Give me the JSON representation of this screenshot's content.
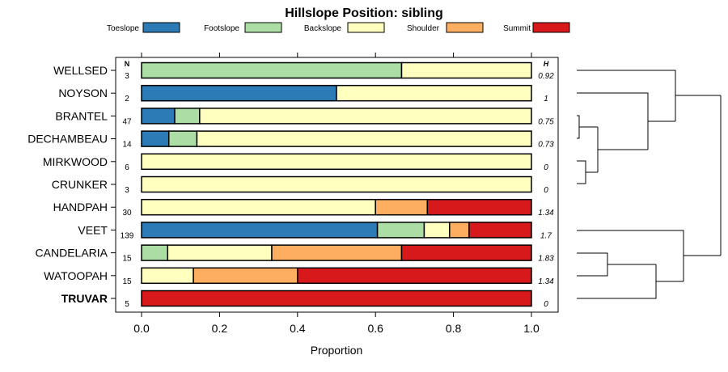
{
  "chart_data": {
    "type": "bar",
    "orientation": "horizontal",
    "stacked": true,
    "title": "Hillslope Position: sibling",
    "xlabel": "Proportion",
    "ylabel": "",
    "xlim": [
      0,
      1
    ],
    "x_ticks": [
      "0.0",
      "0.2",
      "0.4",
      "0.6",
      "0.8",
      "1.0"
    ],
    "n_header": "N",
    "h_header": "H",
    "legend": {
      "placement": "top",
      "entries": [
        {
          "name": "Toeslope",
          "color": "#2c7bb6"
        },
        {
          "name": "Footslope",
          "color": "#abdda4"
        },
        {
          "name": "Backslope",
          "color": "#ffffbf"
        },
        {
          "name": "Shoulder",
          "color": "#fdae61"
        },
        {
          "name": "Summit",
          "color": "#d7191c"
        }
      ]
    },
    "categories": [
      "WELLSED",
      "NOYSON",
      "BRANTEL",
      "DECHAMBEAU",
      "MIRKWOOD",
      "CRUNKER",
      "HANDPAH",
      "VEET",
      "CANDELARIA",
      "WATOOPAH",
      "TRUVAR"
    ],
    "bold_category": "TRUVAR",
    "n": [
      "3",
      "2",
      "47",
      "14",
      "6",
      "3",
      "30",
      "139",
      "15",
      "15",
      "5"
    ],
    "h": [
      "0.92",
      "1",
      "0.75",
      "0.73",
      "0",
      "0",
      "1.34",
      "1.7",
      "1.83",
      "1.34",
      "0"
    ],
    "series": [
      {
        "name": "Toeslope",
        "values": [
          0,
          0.5,
          0.085,
          0.07,
          0,
          0,
          0,
          0.605,
          0,
          0,
          0
        ]
      },
      {
        "name": "Footslope",
        "values": [
          0.667,
          0,
          0.064,
          0.072,
          0,
          0,
          0,
          0.12,
          0.067,
          0,
          0
        ]
      },
      {
        "name": "Backslope",
        "values": [
          0.333,
          0.5,
          0.851,
          0.858,
          1,
          1,
          0.6,
          0.065,
          0.267,
          0.133,
          0
        ]
      },
      {
        "name": "Shoulder",
        "values": [
          0,
          0,
          0,
          0,
          0,
          0,
          0.133,
          0.05,
          0.333,
          0.267,
          0
        ]
      },
      {
        "name": "Summit",
        "values": [
          0,
          0,
          0,
          0,
          0,
          0,
          0.267,
          0.16,
          0.333,
          0.6,
          1
        ]
      }
    ]
  }
}
